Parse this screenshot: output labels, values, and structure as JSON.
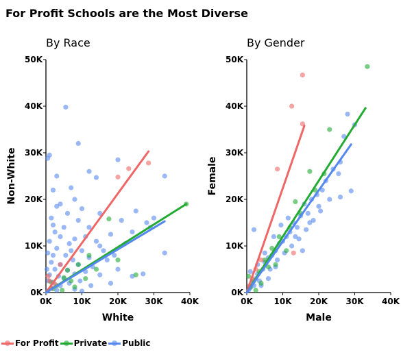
{
  "title": "For Profit Schools are the Most Diverse",
  "colors": {
    "For Profit": "#ee6666",
    "Private": "#22aa33",
    "Public": "#5588ee"
  },
  "legend": [
    {
      "name": "For Profit",
      "color": "#ee6666"
    },
    {
      "name": "Private",
      "color": "#22aa33"
    },
    {
      "name": "Public",
      "color": "#5588ee"
    }
  ],
  "chart_data": [
    {
      "type": "scatter",
      "title": "By Race",
      "xlabel": "White",
      "ylabel": "Non-White",
      "xlim": [
        0,
        40000
      ],
      "ylim": [
        0,
        50000
      ],
      "xticks": [
        0,
        10000,
        20000,
        30000,
        40000
      ],
      "yticks": [
        0,
        10000,
        20000,
        30000,
        40000,
        50000
      ],
      "xtick_labels": [
        "0K",
        "10K",
        "20K",
        "30K",
        "40K"
      ],
      "ytick_labels": [
        "0K",
        "10K",
        "20K",
        "30K",
        "40K",
        "50K"
      ],
      "grid": false,
      "series": [
        {
          "name": "For Profit",
          "points": [
            [
              1000,
              2500
            ],
            [
              2500,
              1800
            ],
            [
              4000,
              6000
            ],
            [
              20000,
              24800
            ],
            [
              23000,
              26600
            ],
            [
              28500,
              27800
            ],
            [
              1500,
              900
            ],
            [
              600,
              3500
            ]
          ],
          "trend": [
            [
              0,
              0
            ],
            [
              28500,
              30300
            ]
          ]
        },
        {
          "name": "Private",
          "points": [
            [
              39000,
              19000
            ],
            [
              25000,
              3800
            ],
            [
              17500,
              15800
            ],
            [
              12000,
              8000
            ],
            [
              9000,
              6000
            ],
            [
              3000,
              1500
            ],
            [
              5000,
              3200
            ],
            [
              7000,
              2500
            ],
            [
              2000,
              800
            ],
            [
              14000,
              5000
            ],
            [
              6000,
              4800
            ],
            [
              1500,
              2200
            ],
            [
              11000,
              3000
            ],
            [
              8000,
              1200
            ],
            [
              4500,
              500
            ],
            [
              20000,
              7000
            ]
          ],
          "trend": [
            [
              0,
              0
            ],
            [
              39000,
              19000
            ]
          ]
        },
        {
          "name": "Public",
          "points": [
            [
              5500,
              39800
            ],
            [
              9000,
              32000
            ],
            [
              1000,
              29500
            ],
            [
              500,
              28800
            ],
            [
              20000,
              28500
            ],
            [
              12000,
              26000
            ],
            [
              33000,
              25000
            ],
            [
              3000,
              25000
            ],
            [
              14000,
              24700
            ],
            [
              2000,
              22000
            ],
            [
              7000,
              22500
            ],
            [
              8000,
              20000
            ],
            [
              4000,
              19000
            ],
            [
              3000,
              18500
            ],
            [
              10000,
              18000
            ],
            [
              6000,
              17000
            ],
            [
              25000,
              17500
            ],
            [
              15000,
              17000
            ],
            [
              1500,
              16000
            ],
            [
              9000,
              15500
            ],
            [
              28000,
              15000
            ],
            [
              21000,
              15500
            ],
            [
              5000,
              14000
            ],
            [
              2500,
              13000
            ],
            [
              12000,
              14000
            ],
            [
              18000,
              12500
            ],
            [
              4000,
              12000
            ],
            [
              8000,
              11500
            ],
            [
              1000,
              11000
            ],
            [
              6500,
              10500
            ],
            [
              15000,
              10000
            ],
            [
              3000,
              9500
            ],
            [
              10000,
              9000
            ],
            [
              22000,
              10500
            ],
            [
              500,
              8500
            ],
            [
              2000,
              8000
            ],
            [
              5500,
              8000
            ],
            [
              33000,
              8500
            ],
            [
              12000,
              7500
            ],
            [
              7500,
              7000
            ],
            [
              1500,
              6500
            ],
            [
              17000,
              7000
            ],
            [
              9000,
              6000
            ],
            [
              4000,
              6000
            ],
            [
              13000,
              5500
            ],
            [
              300,
              5000
            ],
            [
              2500,
              5000
            ],
            [
              6000,
              4800
            ],
            [
              20000,
              5000
            ],
            [
              11000,
              4500
            ],
            [
              8000,
              4000
            ],
            [
              1000,
              3800
            ],
            [
              15000,
              3800
            ],
            [
              3500,
              3500
            ],
            [
              5000,
              3000
            ],
            [
              24000,
              3500
            ],
            [
              700,
              2500
            ],
            [
              2000,
              2200
            ],
            [
              9500,
              2500
            ],
            [
              6500,
              2000
            ],
            [
              12500,
              1500
            ],
            [
              4000,
              1500
            ],
            [
              1500,
              1000
            ],
            [
              18000,
              2000
            ],
            [
              3000,
              500
            ],
            [
              8000,
              700
            ],
            [
              500,
              300
            ],
            [
              10000,
              300
            ],
            [
              27000,
              4000
            ],
            [
              16000,
              9000
            ],
            [
              19000,
              8000
            ],
            [
              7000,
              9000
            ],
            [
              2000,
              14500
            ],
            [
              11000,
              12000
            ],
            [
              14000,
              11000
            ],
            [
              24000,
              13000
            ],
            [
              29000,
              14000
            ],
            [
              30000,
              16000
            ]
          ],
          "trend": [
            [
              0,
              0
            ],
            [
              33000,
              15300
            ]
          ]
        }
      ]
    },
    {
      "type": "scatter",
      "title": "By Gender",
      "xlabel": "Male",
      "ylabel": "Female",
      "xlim": [
        0,
        40000
      ],
      "ylim": [
        0,
        50000
      ],
      "xticks": [
        0,
        10000,
        20000,
        30000,
        40000
      ],
      "yticks": [
        0,
        10000,
        20000,
        30000,
        40000,
        50000
      ],
      "xtick_labels": [
        "0K",
        "10K",
        "20K",
        "30K",
        "40K"
      ],
      "ytick_labels": [
        "0K",
        "10K",
        "20K",
        "30K",
        "40K",
        "50K"
      ],
      "grid": false,
      "series": [
        {
          "name": "For Profit",
          "points": [
            [
              15500,
              46700
            ],
            [
              12500,
              40000
            ],
            [
              15500,
              36200
            ],
            [
              8500,
              26500
            ],
            [
              13000,
              8500
            ],
            [
              1500,
              3000
            ],
            [
              2500,
              5000
            ],
            [
              800,
              1500
            ],
            [
              4000,
              7000
            ]
          ],
          "trend": [
            [
              0,
              0
            ],
            [
              16000,
              35800
            ]
          ]
        },
        {
          "name": "Private",
          "points": [
            [
              33500,
              48500
            ],
            [
              23000,
              35000
            ],
            [
              17500,
              26000
            ],
            [
              21500,
              25500
            ],
            [
              12000,
              14000
            ],
            [
              9000,
              12000
            ],
            [
              7000,
              9500
            ],
            [
              5000,
              7000
            ],
            [
              3500,
              4500
            ],
            [
              2000,
              2500
            ],
            [
              1000,
              1200
            ],
            [
              15000,
              17000
            ],
            [
              11000,
              9000
            ],
            [
              6000,
              5500
            ],
            [
              4000,
              2000
            ],
            [
              19000,
              22000
            ],
            [
              2500,
              500
            ],
            [
              8000,
              6000
            ],
            [
              13500,
              19500
            ],
            [
              500,
              3500
            ]
          ],
          "trend": [
            [
              0,
              0
            ],
            [
              33000,
              39600
            ]
          ]
        },
        {
          "name": "Public",
          "points": [
            [
              28000,
              38300
            ],
            [
              30000,
              36000
            ],
            [
              27000,
              33500
            ],
            [
              26000,
              28000
            ],
            [
              24000,
              26500
            ],
            [
              25500,
              25500
            ],
            [
              22000,
              24000
            ],
            [
              21000,
              22000
            ],
            [
              19500,
              21000
            ],
            [
              18000,
              20000
            ],
            [
              20000,
              18500
            ],
            [
              16000,
              19000
            ],
            [
              17000,
              17000
            ],
            [
              15000,
              16500
            ],
            [
              14000,
              14000
            ],
            [
              13000,
              15000
            ],
            [
              12000,
              13000
            ],
            [
              11000,
              12000
            ],
            [
              10000,
              11000
            ],
            [
              9000,
              10500
            ],
            [
              8000,
              9000
            ],
            [
              7000,
              8000
            ],
            [
              6000,
              7500
            ],
            [
              5000,
              6500
            ],
            [
              4500,
              5000
            ],
            [
              3000,
              4000
            ],
            [
              2500,
              3000
            ],
            [
              1500,
              2000
            ],
            [
              1000,
              1000
            ],
            [
              500,
              500
            ],
            [
              2000,
              1500
            ],
            [
              3500,
              2500
            ],
            [
              6500,
              5000
            ],
            [
              8500,
              7000
            ],
            [
              10500,
              8500
            ],
            [
              12500,
              10000
            ],
            [
              14500,
              11500
            ],
            [
              16500,
              13500
            ],
            [
              18500,
              15500
            ],
            [
              23000,
              20000
            ],
            [
              26000,
              20500
            ],
            [
              29000,
              21800
            ],
            [
              2000,
              13500
            ],
            [
              5000,
              8500
            ],
            [
              7500,
              12000
            ],
            [
              9500,
              14500
            ],
            [
              11500,
              16000
            ],
            [
              13500,
              12000
            ],
            [
              17500,
              15000
            ],
            [
              20500,
              17500
            ],
            [
              15500,
              9000
            ],
            [
              4000,
              1500
            ],
            [
              6000,
              3000
            ],
            [
              8000,
              5500
            ],
            [
              1000,
              4500
            ],
            [
              3000,
              6000
            ]
          ],
          "trend": [
            [
              0,
              0
            ],
            [
              29000,
              31800
            ]
          ]
        }
      ]
    }
  ]
}
